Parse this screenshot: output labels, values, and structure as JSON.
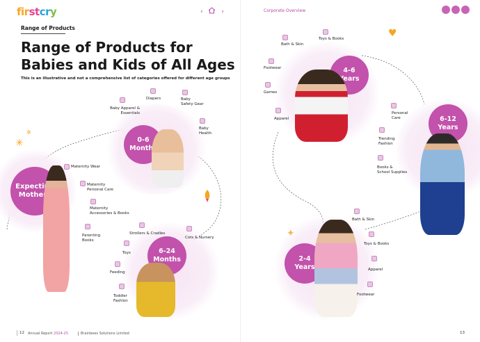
{
  "header": {
    "logo_parts": [
      "fir",
      "st",
      "cr",
      "y"
    ],
    "logo_tag": "",
    "home_icon": "home-icon",
    "left_arrow": "‹",
    "right_arrow": "›",
    "breadcrumb": "Corporate Overview",
    "page_icons": [
      "sun-icon",
      "search-icon",
      "menu-icon"
    ]
  },
  "left_page": {
    "section_label": "Range of Products",
    "title_line1": "Range of Products for",
    "title_line2": "Babies and Kids of All Ages",
    "subtitle": "This is an illustrative and not a comprehensive list of categories offered for different age groups",
    "groups": {
      "expecting": {
        "label": "Expecting\nMothers",
        "items": [
          "Maternity Wear",
          "Maternity\nPersonal Care",
          "Maternity\nAccessories & Books",
          "Parenting\nBooks"
        ]
      },
      "m0_6": {
        "label": "0-6\nMonths",
        "items": [
          "Baby Apparel &\nEssentials",
          "Diapers",
          "Baby\nSafety Gear",
          "Baby\nHealth"
        ]
      },
      "m6_24": {
        "label": "6-24\nMonths",
        "items": [
          "Strollers & Cradles",
          "Cots & Nursery",
          "Toys",
          "Feeding",
          "Toddler\nFashion"
        ]
      }
    }
  },
  "right_page": {
    "groups": {
      "y4_6": {
        "label": "4-6\nYears",
        "items": [
          "Bath & Skin",
          "Toys & Books",
          "Footwear",
          "Games",
          "Apparel"
        ]
      },
      "y6_12": {
        "label": "6-12\nYears",
        "items": [
          "Personal\nCare",
          "Trending\nFashion",
          "Books &\nSchool Supplies"
        ]
      },
      "y2_4": {
        "label": "2-4\nYears",
        "items": [
          "Bath & Skin",
          "Toys & Books",
          "Apparel",
          "Footwear"
        ]
      }
    }
  },
  "footer": {
    "left_page_num": "12",
    "report": "Annual Report ",
    "report_year": "2024-25",
    "company": "Brainbees Solutions Limited",
    "right_page_num": "13"
  },
  "colors": {
    "accent": "#c252ab",
    "glow": "#f7e3f3",
    "logo_orange": "#f6a623"
  }
}
